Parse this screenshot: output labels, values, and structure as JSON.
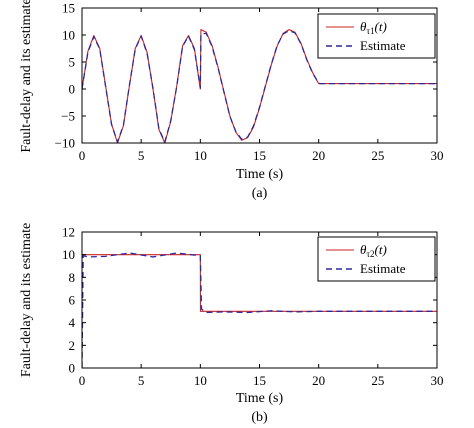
{
  "chart_data": [
    {
      "type": "line",
      "panel_label": "(a)",
      "xlabel": "Time (s)",
      "ylabel": "Fault-delay and its estimate",
      "xlim": [
        0,
        30
      ],
      "ylim": [
        -10,
        15
      ],
      "xticks": [
        0,
        5,
        10,
        15,
        20,
        25,
        30
      ],
      "yticks": [
        -10,
        -5,
        0,
        5,
        10,
        15
      ],
      "grid": false,
      "legend_position": "top-right",
      "legend": [
        {
          "label_base": "θ",
          "label_sub": "τ1",
          "label_arg": "(t)",
          "style": "solid",
          "color": "#cc2222"
        },
        {
          "label": "Estimate",
          "style": "dashed",
          "color": "#2a2a9e"
        }
      ],
      "series": [
        {
          "name": "θτ1(t)",
          "style": "solid",
          "color": "#cc2222",
          "x": [
            0,
            0.5,
            1,
            1.5,
            2,
            2.5,
            3,
            3.5,
            4,
            4.5,
            5,
            5.5,
            6,
            6.5,
            7,
            7.5,
            8,
            8.5,
            9,
            9.5,
            10,
            10.05,
            10.5,
            11,
            11.5,
            12,
            12.5,
            13,
            13.5,
            14,
            14.5,
            15,
            15.5,
            16,
            16.5,
            17,
            17.5,
            18,
            18.5,
            19,
            19.5,
            20,
            20.1,
            25,
            30
          ],
          "y": [
            0,
            7,
            9.9,
            7.5,
            0.5,
            -6.5,
            -10,
            -6.8,
            0.5,
            7.5,
            9.9,
            6.8,
            0,
            -7.5,
            -10,
            -6,
            0.5,
            8,
            9.9,
            7.5,
            0,
            11,
            10.5,
            8,
            4,
            -0.5,
            -5,
            -8,
            -9.5,
            -9,
            -7,
            -3.5,
            0.5,
            4.5,
            8,
            10.3,
            11,
            10.5,
            8.5,
            5.5,
            3,
            1,
            1,
            1,
            1
          ]
        },
        {
          "name": "Estimate",
          "style": "dashed",
          "color": "#2a2a9e",
          "x": [
            0,
            0.5,
            1,
            1.5,
            2,
            2.5,
            3,
            3.5,
            4,
            4.5,
            5,
            5.5,
            6,
            6.5,
            7,
            7.5,
            8,
            8.5,
            9,
            9.5,
            10,
            10.05,
            10.5,
            11,
            11.5,
            12,
            12.5,
            13,
            13.5,
            14,
            14.5,
            15,
            15.5,
            16,
            16.5,
            17,
            17.5,
            18,
            18.5,
            19,
            19.5,
            20,
            20.1,
            25,
            30
          ],
          "y": [
            0,
            6.8,
            9.7,
            7.4,
            0.4,
            -6.6,
            -9.8,
            -6.7,
            0.6,
            7.4,
            9.8,
            6.6,
            0.1,
            -7.4,
            -9.8,
            -5.9,
            0.4,
            7.9,
            9.8,
            7.3,
            0.2,
            10.2,
            10.3,
            7.8,
            3.9,
            -0.6,
            -5.1,
            -7.9,
            -9.3,
            -8.9,
            -6.8,
            -3.4,
            0.6,
            4.6,
            8.1,
            10.2,
            10.8,
            10.4,
            8.4,
            5.4,
            2.9,
            1.1,
            1,
            1,
            1
          ]
        }
      ]
    },
    {
      "type": "line",
      "panel_label": "(b)",
      "xlabel": "Time (s)",
      "ylabel": "Fault-delay and its estimate",
      "xlim": [
        0,
        30
      ],
      "ylim": [
        0,
        12
      ],
      "xticks": [
        0,
        5,
        10,
        15,
        20,
        25,
        30
      ],
      "yticks": [
        0,
        2,
        4,
        6,
        8,
        10,
        12
      ],
      "grid": false,
      "legend_position": "top-right",
      "legend": [
        {
          "label_base": "θ",
          "label_sub": "τ2",
          "label_arg": "(t)",
          "style": "solid",
          "color": "#cc2222"
        },
        {
          "label": "Estimate",
          "style": "dashed",
          "color": "#2a2a9e"
        }
      ],
      "series": [
        {
          "name": "θτ2(t)",
          "style": "solid",
          "color": "#cc2222",
          "x": [
            0,
            10,
            10.01,
            30
          ],
          "y": [
            10,
            10,
            5,
            5
          ]
        },
        {
          "name": "Estimate",
          "style": "dashed",
          "color": "#2a2a9e",
          "x": [
            0,
            0.1,
            0.5,
            2,
            4,
            6,
            8,
            10,
            10.1,
            10.5,
            12,
            14,
            16,
            18,
            20,
            25,
            30
          ],
          "y": [
            0,
            9.9,
            9.8,
            9.85,
            10.15,
            9.8,
            10.15,
            9.9,
            5.2,
            4.9,
            4.95,
            4.9,
            5.05,
            4.95,
            5,
            5,
            5
          ]
        }
      ]
    }
  ]
}
